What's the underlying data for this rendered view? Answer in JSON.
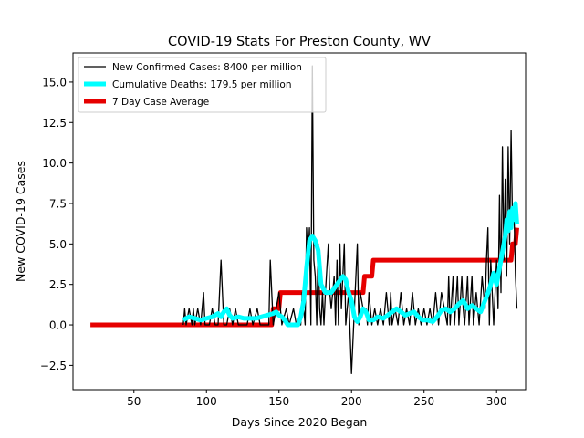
{
  "chart_data": {
    "type": "line",
    "title": "COVID-19 Stats For Preston County, WV",
    "xlabel": "Days Since 2020 Began",
    "ylabel": "New COVID-19 Cases",
    "xlim": [
      8,
      320
    ],
    "ylim": [
      -4.0,
      16.8
    ],
    "xticks": [
      {
        "value": 50,
        "label": "50"
      },
      {
        "value": 100,
        "label": "100"
      },
      {
        "value": 150,
        "label": "150"
      },
      {
        "value": 200,
        "label": "200"
      },
      {
        "value": 250,
        "label": "250"
      },
      {
        "value": 300,
        "label": "300"
      }
    ],
    "yticks": [
      {
        "value": -2.5,
        "label": "−2.5"
      },
      {
        "value": 0.0,
        "label": "0.0"
      },
      {
        "value": 2.5,
        "label": "2.5"
      },
      {
        "value": 5.0,
        "label": "5.0"
      },
      {
        "value": 7.5,
        "label": "7.5"
      },
      {
        "value": 10.0,
        "label": "10.0"
      },
      {
        "value": 12.5,
        "label": "12.5"
      },
      {
        "value": 15.0,
        "label": "15.0"
      }
    ],
    "grid": false,
    "legend_position": "top-left",
    "series": [
      {
        "name": "New Confirmed Cases: 8400 per million",
        "color": "#000000",
        "points": [
          [
            84,
            0
          ],
          [
            85,
            1
          ],
          [
            86,
            0
          ],
          [
            88,
            1
          ],
          [
            90,
            0
          ],
          [
            91,
            1
          ],
          [
            92,
            0
          ],
          [
            94,
            1
          ],
          [
            96,
            0
          ],
          [
            98,
            2
          ],
          [
            99,
            0
          ],
          [
            100,
            0
          ],
          [
            102,
            0
          ],
          [
            104,
            1
          ],
          [
            106,
            0
          ],
          [
            108,
            0
          ],
          [
            110,
            4
          ],
          [
            112,
            0
          ],
          [
            114,
            0
          ],
          [
            116,
            1
          ],
          [
            118,
            0
          ],
          [
            120,
            1
          ],
          [
            122,
            0
          ],
          [
            125,
            0
          ],
          [
            128,
            0
          ],
          [
            130,
            1
          ],
          [
            132,
            0
          ],
          [
            135,
            1
          ],
          [
            137,
            0
          ],
          [
            140,
            0
          ],
          [
            143,
            0
          ],
          [
            144,
            4
          ],
          [
            146,
            0
          ],
          [
            148,
            1
          ],
          [
            150,
            2
          ],
          [
            152,
            0
          ],
          [
            155,
            1
          ],
          [
            157,
            0
          ],
          [
            160,
            1
          ],
          [
            162,
            0
          ],
          [
            165,
            0
          ],
          [
            166,
            2
          ],
          [
            168,
            0
          ],
          [
            169,
            6
          ],
          [
            170,
            4
          ],
          [
            171,
            6
          ],
          [
            172,
            0
          ],
          [
            173,
            16
          ],
          [
            174,
            4
          ],
          [
            175,
            3
          ],
          [
            176,
            0
          ],
          [
            177,
            5
          ],
          [
            178,
            1
          ],
          [
            179,
            0
          ],
          [
            180,
            2
          ],
          [
            181,
            0
          ],
          [
            182,
            2
          ],
          [
            184,
            5
          ],
          [
            185,
            2
          ],
          [
            186,
            1
          ],
          [
            188,
            3
          ],
          [
            189,
            0
          ],
          [
            190,
            4
          ],
          [
            191,
            0
          ],
          [
            192,
            5
          ],
          [
            193,
            1
          ],
          [
            195,
            5
          ],
          [
            196,
            0
          ],
          [
            198,
            2
          ],
          [
            200,
            -3
          ],
          [
            202,
            1
          ],
          [
            204,
            5
          ],
          [
            205,
            0
          ],
          [
            206,
            2
          ],
          [
            208,
            1
          ],
          [
            210,
            1
          ],
          [
            211,
            0
          ],
          [
            212,
            2
          ],
          [
            214,
            0
          ],
          [
            216,
            1
          ],
          [
            218,
            0
          ],
          [
            220,
            1
          ],
          [
            222,
            0
          ],
          [
            224,
            2
          ],
          [
            226,
            0
          ],
          [
            227,
            2
          ],
          [
            228,
            0
          ],
          [
            230,
            1
          ],
          [
            232,
            0
          ],
          [
            234,
            2
          ],
          [
            236,
            0
          ],
          [
            238,
            1
          ],
          [
            240,
            0
          ],
          [
            242,
            2
          ],
          [
            244,
            0
          ],
          [
            246,
            1
          ],
          [
            248,
            0
          ],
          [
            250,
            1
          ],
          [
            252,
            0
          ],
          [
            254,
            1
          ],
          [
            256,
            0
          ],
          [
            258,
            2
          ],
          [
            260,
            0
          ],
          [
            262,
            2
          ],
          [
            264,
            1
          ],
          [
            266,
            0
          ],
          [
            267,
            3
          ],
          [
            268,
            0
          ],
          [
            270,
            3
          ],
          [
            271,
            0
          ],
          [
            273,
            3
          ],
          [
            274,
            0
          ],
          [
            276,
            3
          ],
          [
            277,
            1
          ],
          [
            278,
            0
          ],
          [
            280,
            3
          ],
          [
            281,
            0
          ],
          [
            283,
            3
          ],
          [
            284,
            0
          ],
          [
            286,
            2
          ],
          [
            288,
            0
          ],
          [
            290,
            3
          ],
          [
            292,
            1
          ],
          [
            293,
            4
          ],
          [
            294,
            6
          ],
          [
            295,
            0
          ],
          [
            296,
            4
          ],
          [
            297,
            2
          ],
          [
            298,
            0
          ],
          [
            300,
            4
          ],
          [
            301,
            1
          ],
          [
            302,
            8
          ],
          [
            303,
            2
          ],
          [
            304,
            11
          ],
          [
            305,
            4
          ],
          [
            306,
            9
          ],
          [
            307,
            3
          ],
          [
            308,
            11
          ],
          [
            309,
            5
          ],
          [
            310,
            12
          ],
          [
            311,
            6
          ],
          [
            312,
            7
          ],
          [
            313,
            3
          ],
          [
            314,
            1
          ]
        ]
      },
      {
        "name": "Cumulative Deaths: 179.5 per million",
        "color": "#00ffff",
        "points": [
          [
            84,
            0.3
          ],
          [
            88,
            0.5
          ],
          [
            92,
            0.4
          ],
          [
            96,
            0.3
          ],
          [
            100,
            0.4
          ],
          [
            104,
            0.5
          ],
          [
            108,
            0.7
          ],
          [
            110,
            0.5
          ],
          [
            112,
            0.8
          ],
          [
            114,
            1.0
          ],
          [
            116,
            0.6
          ],
          [
            118,
            0.4
          ],
          [
            122,
            0.5
          ],
          [
            126,
            0.4
          ],
          [
            130,
            0.4
          ],
          [
            134,
            0.4
          ],
          [
            138,
            0.5
          ],
          [
            142,
            0.6
          ],
          [
            146,
            0.7
          ],
          [
            148,
            0.8
          ],
          [
            150,
            0.6
          ],
          [
            152,
            0.5
          ],
          [
            154,
            0.3
          ],
          [
            156,
            0.0
          ],
          [
            160,
            0.0
          ],
          [
            163,
            0.0
          ],
          [
            165,
            0.5
          ],
          [
            167,
            1.5
          ],
          [
            169,
            3.5
          ],
          [
            171,
            5.2
          ],
          [
            173,
            5.5
          ],
          [
            175,
            5.2
          ],
          [
            177,
            4.6
          ],
          [
            179,
            2.5
          ],
          [
            182,
            2.0
          ],
          [
            186,
            2.0
          ],
          [
            190,
            2.5
          ],
          [
            194,
            3.0
          ],
          [
            196,
            2.8
          ],
          [
            198,
            2.0
          ],
          [
            200,
            1.5
          ],
          [
            202,
            0.5
          ],
          [
            204,
            0.2
          ],
          [
            206,
            0.5
          ],
          [
            208,
            1.0
          ],
          [
            210,
            0.8
          ],
          [
            212,
            0.3
          ],
          [
            215,
            0.3
          ],
          [
            218,
            0.5
          ],
          [
            222,
            0.4
          ],
          [
            225,
            0.6
          ],
          [
            228,
            0.8
          ],
          [
            231,
            1.0
          ],
          [
            234,
            0.8
          ],
          [
            237,
            0.6
          ],
          [
            240,
            0.7
          ],
          [
            243,
            0.8
          ],
          [
            246,
            0.5
          ],
          [
            249,
            0.3
          ],
          [
            252,
            0.3
          ],
          [
            256,
            0.2
          ],
          [
            259,
            0.5
          ],
          [
            262,
            0.9
          ],
          [
            265,
            1.0
          ],
          [
            268,
            0.8
          ],
          [
            271,
            1.0
          ],
          [
            274,
            1.3
          ],
          [
            277,
            1.5
          ],
          [
            280,
            1.0
          ],
          [
            283,
            1.2
          ],
          [
            286,
            1.0
          ],
          [
            289,
            0.8
          ],
          [
            292,
            1.5
          ],
          [
            295,
            2.2
          ],
          [
            298,
            3.2
          ],
          [
            300,
            2.5
          ],
          [
            302,
            3.5
          ],
          [
            304,
            4.5
          ],
          [
            306,
            5.5
          ],
          [
            307,
            6.5
          ],
          [
            308,
            5.8
          ],
          [
            309,
            7.0
          ],
          [
            310,
            6.0
          ],
          [
            311,
            7.2
          ],
          [
            312,
            6.5
          ],
          [
            313,
            7.5
          ],
          [
            314,
            6.2
          ]
        ]
      },
      {
        "name": "7 Day Case Average",
        "color": "#e60000",
        "points": [
          [
            20,
            0
          ],
          [
            145,
            0
          ],
          [
            146,
            1
          ],
          [
            150,
            1
          ],
          [
            151,
            2
          ],
          [
            201,
            2
          ],
          [
            202,
            2
          ],
          [
            208,
            2
          ],
          [
            209,
            3
          ],
          [
            214,
            3
          ],
          [
            215,
            4
          ],
          [
            309,
            4
          ],
          [
            310,
            4
          ],
          [
            311,
            5
          ],
          [
            313,
            5
          ],
          [
            314,
            6
          ]
        ]
      }
    ]
  }
}
